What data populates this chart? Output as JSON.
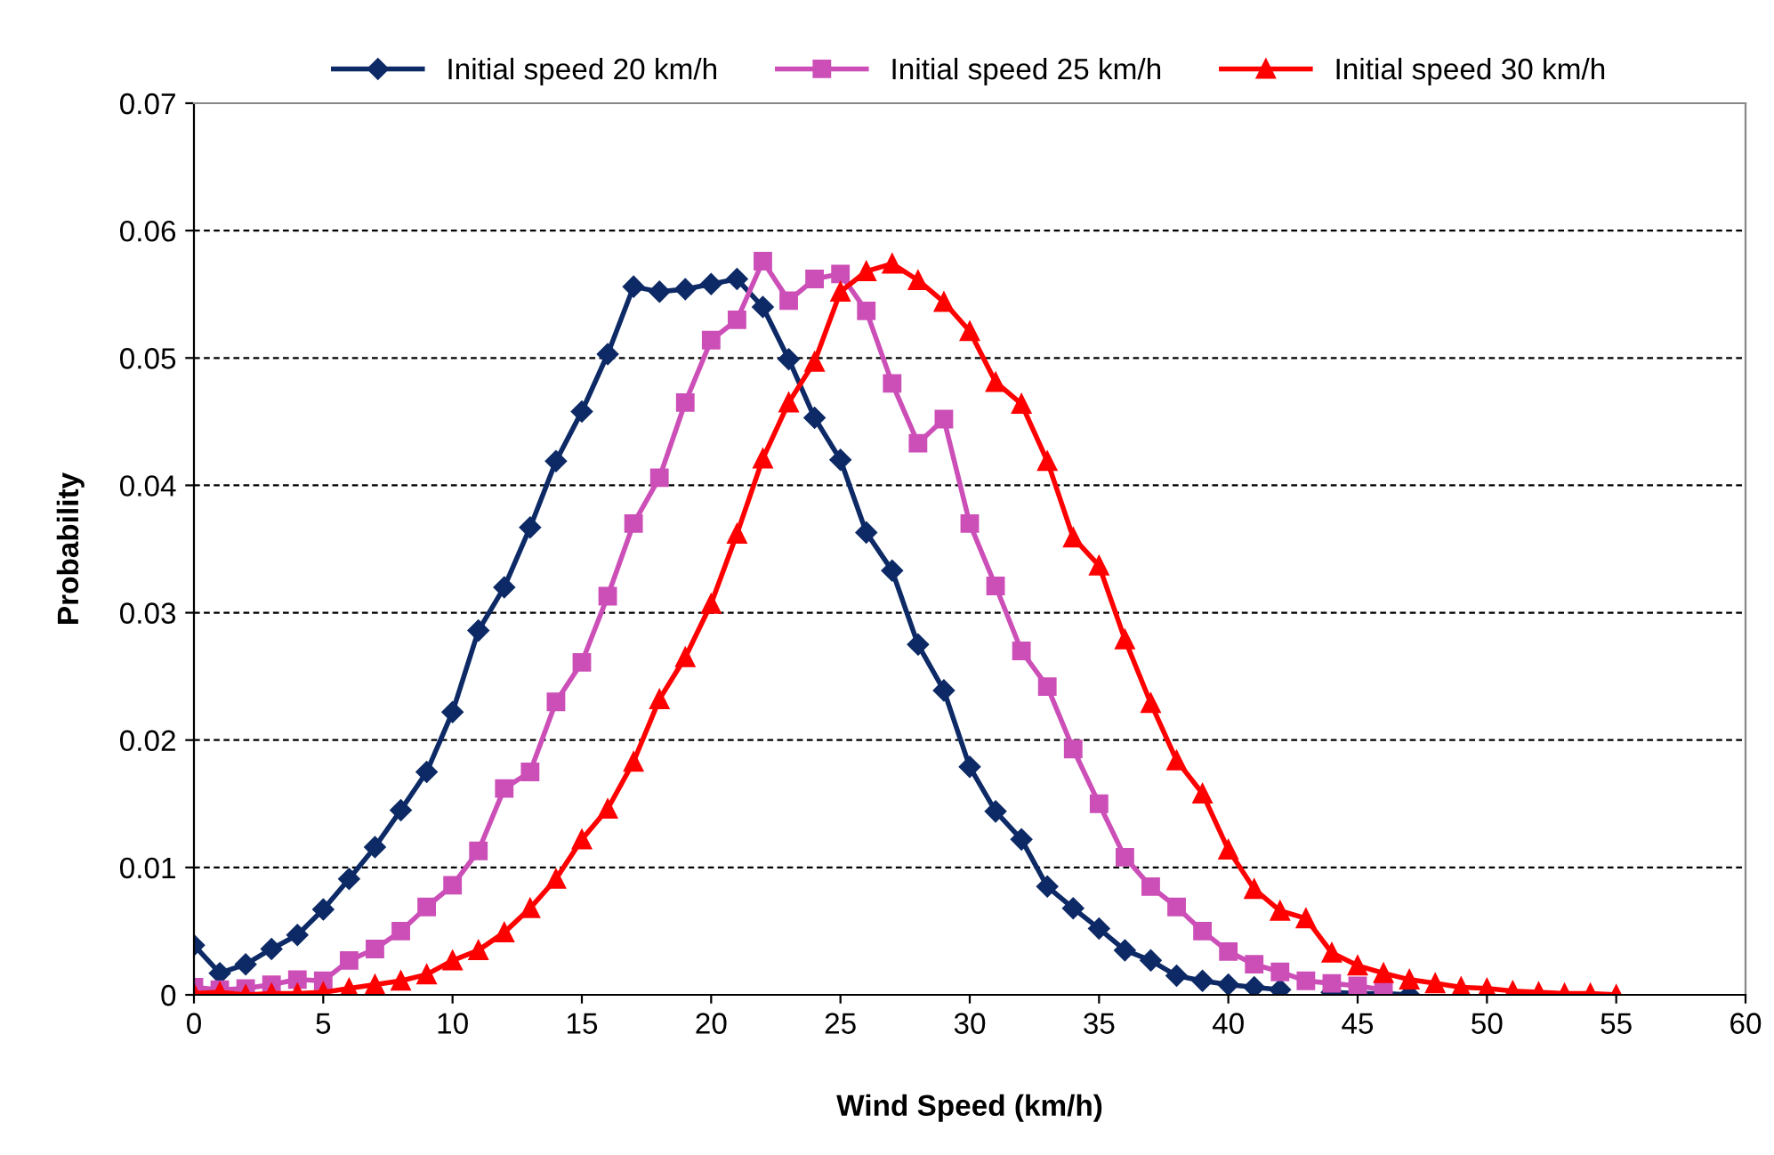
{
  "chart_data": {
    "type": "line",
    "xlabel": "Wind Speed (km/h)",
    "ylabel": "Probability",
    "xlim": [
      0,
      60
    ],
    "xticks": [
      0,
      5,
      10,
      15,
      20,
      25,
      30,
      35,
      40,
      45,
      50,
      55,
      60
    ],
    "ylim": [
      0,
      0.07
    ],
    "yticks": [
      {
        "value": 0,
        "label": "0"
      },
      {
        "value": 0.01,
        "label": "0.01"
      },
      {
        "value": 0.02,
        "label": "0.02"
      },
      {
        "value": 0.03,
        "label": "0.03"
      },
      {
        "value": 0.04,
        "label": "0.04"
      },
      {
        "value": 0.05,
        "label": "0.05"
      },
      {
        "value": 0.06,
        "label": "0.06"
      },
      {
        "value": 0.07,
        "label": "0.07"
      }
    ],
    "grid": "y",
    "legend": "top",
    "line_style": "solid",
    "series": [
      {
        "name": "Initial speed 20 km/h",
        "color": "#0d2a66",
        "marker": "diamond",
        "x": [
          0,
          1,
          2,
          3,
          4,
          5,
          6,
          7,
          8,
          9,
          10,
          11,
          12,
          13,
          14,
          15,
          16,
          17,
          18,
          19,
          20,
          21,
          22,
          23,
          24,
          25,
          26,
          27,
          28,
          29,
          30,
          31,
          32,
          33,
          34,
          35,
          36,
          37,
          38,
          39,
          40,
          41,
          42,
          43,
          44,
          45,
          46,
          47
        ],
        "values": [
          0.0039,
          0.0017,
          0.0024,
          0.0036,
          0.0047,
          0.0067,
          0.0091,
          0.0116,
          0.0145,
          0.0175,
          0.0222,
          0.0286,
          0.032,
          0.0367,
          0.0419,
          0.0458,
          0.0503,
          0.0556,
          0.0552,
          0.0554,
          0.0558,
          0.0562,
          0.054,
          0.0499,
          0.0453,
          0.042,
          0.0363,
          0.0333,
          0.0275,
          0.0239,
          0.0179,
          0.0144,
          0.0122,
          0.0085,
          0.0068,
          0.0052,
          0.0035,
          0.0027,
          0.0015,
          0.0011,
          0.0008,
          0.0006,
          0.0004,
          null,
          0.0002,
          0.0001,
          0.0001,
          0.0
        ]
      },
      {
        "name": "Initial speed 25 km/h",
        "color": "#cc4fb8",
        "marker": "square",
        "x": [
          0,
          1,
          2,
          3,
          4,
          5,
          6,
          7,
          8,
          9,
          10,
          11,
          12,
          13,
          14,
          15,
          16,
          17,
          18,
          19,
          20,
          21,
          22,
          23,
          24,
          25,
          26,
          27,
          28,
          29,
          30,
          31,
          32,
          33,
          34,
          35,
          36,
          37,
          38,
          39,
          40,
          41,
          42,
          43,
          44,
          45,
          46
        ],
        "values": [
          0.0006,
          0.0004,
          0.0005,
          0.0008,
          0.0012,
          0.0011,
          0.0027,
          0.0036,
          0.005,
          0.0069,
          0.0086,
          0.0113,
          0.0162,
          0.0175,
          0.023,
          0.0261,
          0.0313,
          0.037,
          0.0406,
          0.0465,
          0.0514,
          0.053,
          0.0576,
          0.0545,
          0.0562,
          0.0566,
          0.0537,
          0.048,
          0.0433,
          0.0452,
          0.037,
          0.0321,
          0.027,
          0.0242,
          0.0193,
          0.015,
          0.0108,
          0.0085,
          0.0069,
          0.005,
          0.0034,
          0.0024,
          0.0018,
          0.0011,
          0.0009,
          0.0007,
          0.0004
        ]
      },
      {
        "name": "Initial speed 30 km/h",
        "color": "#ff0000",
        "marker": "triangle",
        "x": [
          0,
          1,
          2,
          3,
          4,
          5,
          6,
          7,
          8,
          9,
          10,
          11,
          12,
          13,
          14,
          15,
          16,
          17,
          18,
          19,
          20,
          21,
          22,
          23,
          24,
          25,
          26,
          27,
          28,
          29,
          30,
          31,
          32,
          33,
          34,
          35,
          36,
          37,
          38,
          39,
          40,
          41,
          42,
          43,
          44,
          45,
          46,
          47,
          48,
          49,
          50,
          51,
          52,
          53,
          54,
          55
        ],
        "values": [
          0.0001,
          0.0002,
          0.0,
          0.0001,
          0.0001,
          0.0002,
          0.0005,
          0.0008,
          0.0011,
          0.0016,
          0.0027,
          0.0035,
          0.0049,
          0.0068,
          0.0091,
          0.0122,
          0.0146,
          0.0183,
          0.0232,
          0.0265,
          0.0307,
          0.0362,
          0.0421,
          0.0465,
          0.0497,
          0.0552,
          0.0568,
          0.0574,
          0.0561,
          0.0544,
          0.0521,
          0.0481,
          0.0464,
          0.0419,
          0.0359,
          0.0337,
          0.0279,
          0.0229,
          0.0184,
          0.0158,
          0.0114,
          0.0083,
          0.0066,
          0.006,
          0.0033,
          0.0023,
          0.0017,
          0.0012,
          0.0009,
          0.0006,
          0.0005,
          0.0003,
          0.0002,
          0.0001,
          0.0001,
          0.0
        ]
      }
    ]
  }
}
